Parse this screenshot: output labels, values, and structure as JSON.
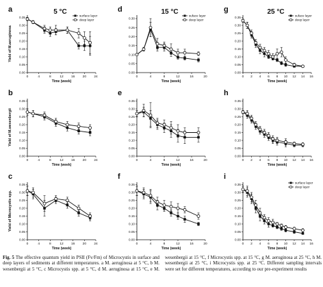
{
  "figure": {
    "caption_label": "Fig. 5",
    "caption_text": "The effective quantum yield in PSII (Fv/Fm) of Microcystis in surface and deep layers of sediments at different temperatures. a M. aeruginosa at 5 °C, b M. wesenbergii at 5 °C, c Microcystis spp. at 5 °C, d M. aeruginosa at 15 °C, e M. wesenbergii at 15 °C, f Microcystis spp. at 15 °C, g M. aeruginosa at 25 °C, h M. wesenbergii at 25 °C, i Microcystis spp. at 25 °C. Different sampling intervals were set for different temperatures, according to our pre-experiment results"
  },
  "chart_data": [
    {
      "panel": "a",
      "title": "5 °C",
      "type": "line",
      "xlabel": "Time (week)",
      "ylabel": "Yield of M.aeruginosa",
      "xlim": [
        0,
        24
      ],
      "xticks": [
        0,
        4,
        8,
        12,
        16,
        20,
        24
      ],
      "ylim": [
        0,
        0.4
      ],
      "yticks": [
        0,
        0.05,
        0.1,
        0.15,
        0.2,
        0.25,
        0.3,
        0.35,
        0.4
      ],
      "legend": [
        "surface layer",
        "deep layer"
      ],
      "series": [
        {
          "name": "surface layer",
          "x": [
            0,
            2,
            6,
            8,
            10,
            14,
            18,
            20,
            22
          ],
          "y": [
            0.34,
            0.32,
            0.27,
            0.25,
            0.26,
            0.27,
            0.17,
            0.17,
            0.17
          ],
          "err": [
            0.01,
            0.01,
            0.02,
            0.02,
            0.02,
            0.02,
            0.02,
            0.03,
            0.06
          ]
        },
        {
          "name": "deep layer",
          "x": [
            0,
            2,
            6,
            8,
            10,
            14,
            18,
            20,
            22
          ],
          "y": [
            0.34,
            0.32,
            0.28,
            0.27,
            0.27,
            0.27,
            0.25,
            0.22,
            0.19
          ],
          "err": [
            0.01,
            0.01,
            0.02,
            0.02,
            0.03,
            0.02,
            0.03,
            0.04,
            0.07
          ]
        }
      ]
    },
    {
      "panel": "d",
      "title": "15 °C",
      "type": "line",
      "xlabel": "Time (week)",
      "ylabel": "",
      "xlim": [
        0,
        20
      ],
      "xticks": [
        0,
        4,
        8,
        12,
        16,
        20
      ],
      "ylim": [
        0,
        0.35
      ],
      "yticks": [
        0,
        0.05,
        0.1,
        0.15,
        0.2,
        0.25,
        0.3,
        0.35
      ],
      "legend": [
        "suface layer",
        "deep layer"
      ],
      "series": [
        {
          "name": "suface layer",
          "x": [
            0,
            2,
            4,
            6,
            8,
            10,
            12,
            14,
            18
          ],
          "y": [
            0.1,
            0.13,
            0.24,
            0.14,
            0.14,
            0.11,
            0.085,
            0.08,
            0.07
          ],
          "err": [
            0.005,
            0.01,
            0.04,
            0.02,
            0.02,
            0.02,
            0.01,
            0.01,
            0.01
          ]
        },
        {
          "name": "deep layer",
          "x": [
            0,
            2,
            4,
            6,
            8,
            10,
            12,
            14,
            18
          ],
          "y": [
            0.1,
            0.13,
            0.25,
            0.16,
            0.15,
            0.13,
            0.11,
            0.11,
            0.105
          ],
          "err": [
            0.005,
            0.01,
            0.05,
            0.03,
            0.02,
            0.03,
            0.02,
            0.02,
            0.01
          ]
        }
      ]
    },
    {
      "panel": "g",
      "title": "25 °C",
      "type": "line",
      "xlabel": "Time (week)",
      "ylabel": "",
      "xlim": [
        0,
        16
      ],
      "xticks": [
        0,
        2,
        4,
        6,
        8,
        10,
        12,
        14,
        16
      ],
      "ylim": [
        0,
        0.4
      ],
      "yticks": [
        0,
        0.05,
        0.1,
        0.15,
        0.2,
        0.25,
        0.3,
        0.35,
        0.4
      ],
      "legend": [
        "suface layer",
        "deep layer"
      ],
      "series": [
        {
          "name": "suface layer",
          "x": [
            0,
            1,
            2,
            3,
            4,
            5,
            6,
            7,
            8,
            9,
            10,
            12,
            14
          ],
          "y": [
            0.33,
            0.3,
            0.24,
            0.18,
            0.14,
            0.12,
            0.1,
            0.09,
            0.08,
            0.06,
            0.05,
            0.04,
            0.04
          ],
          "err": [
            0.01,
            0.02,
            0.02,
            0.02,
            0.02,
            0.02,
            0.01,
            0.01,
            0.01,
            0.01,
            0.01,
            0.005,
            0.005
          ]
        },
        {
          "name": "deep layer",
          "x": [
            0,
            1,
            2,
            3,
            4,
            5,
            6,
            7,
            8,
            9,
            10,
            12,
            14
          ],
          "y": [
            0.33,
            0.3,
            0.25,
            0.19,
            0.16,
            0.14,
            0.12,
            0.1,
            0.12,
            0.13,
            0.08,
            0.05,
            0.04
          ],
          "err": [
            0.01,
            0.02,
            0.02,
            0.02,
            0.02,
            0.02,
            0.02,
            0.02,
            0.03,
            0.03,
            0.02,
            0.01,
            0.005
          ]
        }
      ]
    },
    {
      "panel": "b",
      "title": "",
      "type": "line",
      "xlabel": "Time (week)",
      "ylabel": "Yield of M.wesenbergii",
      "xlim": [
        0,
        24
      ],
      "xticks": [
        0,
        4,
        8,
        12,
        16,
        20,
        24
      ],
      "ylim": [
        0,
        0.4
      ],
      "yticks": [
        0,
        0.05,
        0.1,
        0.15,
        0.2,
        0.25,
        0.3,
        0.35,
        0.4
      ],
      "legend": [],
      "series": [
        {
          "name": "",
          "x": [
            0,
            2,
            6,
            10,
            14,
            18,
            22
          ],
          "y": [
            0.28,
            0.27,
            0.25,
            0.21,
            0.18,
            0.16,
            0.15
          ],
          "err": [
            0.02,
            0.02,
            0.02,
            0.02,
            0.02,
            0.02,
            0.02
          ]
        },
        {
          "name": "",
          "x": [
            0,
            2,
            6,
            10,
            14,
            18,
            22
          ],
          "y": [
            0.28,
            0.27,
            0.26,
            0.22,
            0.2,
            0.19,
            0.18
          ],
          "err": [
            0.02,
            0.02,
            0.02,
            0.02,
            0.02,
            0.02,
            0.02
          ]
        }
      ]
    },
    {
      "panel": "e",
      "title": "",
      "type": "line",
      "xlabel": "Time (week)",
      "ylabel": "",
      "xlim": [
        0,
        20
      ],
      "xticks": [
        0,
        4,
        8,
        12,
        16,
        20
      ],
      "ylim": [
        0,
        0.4
      ],
      "yticks": [
        0,
        0.05,
        0.1,
        0.15,
        0.2,
        0.25,
        0.3,
        0.35,
        0.4
      ],
      "legend": [],
      "series": [
        {
          "name": "",
          "x": [
            0,
            2,
            4,
            6,
            8,
            10,
            12,
            14,
            18
          ],
          "y": [
            0.27,
            0.28,
            0.24,
            0.2,
            0.18,
            0.16,
            0.13,
            0.12,
            0.12
          ],
          "err": [
            0.02,
            0.03,
            0.05,
            0.03,
            0.03,
            0.04,
            0.04,
            0.04,
            0.03
          ]
        },
        {
          "name": "",
          "x": [
            0,
            2,
            4,
            6,
            8,
            10,
            12,
            14,
            18
          ],
          "y": [
            0.27,
            0.29,
            0.26,
            0.21,
            0.2,
            0.18,
            0.16,
            0.15,
            0.15
          ],
          "err": [
            0.02,
            0.04,
            0.08,
            0.03,
            0.03,
            0.04,
            0.04,
            0.03,
            0.03
          ]
        }
      ]
    },
    {
      "panel": "h",
      "title": "",
      "type": "line",
      "xlabel": "Time (week)",
      "ylabel": "",
      "xlim": [
        0,
        16
      ],
      "xticks": [
        0,
        2,
        4,
        6,
        8,
        10,
        12,
        14,
        16
      ],
      "ylim": [
        0,
        0.4
      ],
      "yticks": [
        0,
        0.05,
        0.1,
        0.15,
        0.2,
        0.25,
        0.3,
        0.35,
        0.4
      ],
      "legend": [],
      "series": [
        {
          "name": "",
          "x": [
            0,
            1,
            2,
            3,
            4,
            5,
            6,
            7,
            8,
            10,
            12,
            14
          ],
          "y": [
            0.28,
            0.26,
            0.23,
            0.19,
            0.16,
            0.14,
            0.12,
            0.1,
            0.09,
            0.08,
            0.07,
            0.07
          ],
          "err": [
            0.01,
            0.02,
            0.02,
            0.02,
            0.02,
            0.02,
            0.02,
            0.02,
            0.02,
            0.02,
            0.01,
            0.01
          ]
        },
        {
          "name": "",
          "x": [
            0,
            1,
            2,
            3,
            4,
            5,
            6,
            7,
            8,
            10,
            12,
            14
          ],
          "y": [
            0.28,
            0.27,
            0.24,
            0.2,
            0.17,
            0.15,
            0.13,
            0.11,
            0.1,
            0.09,
            0.08,
            0.075
          ],
          "err": [
            0.01,
            0.02,
            0.02,
            0.02,
            0.02,
            0.02,
            0.02,
            0.02,
            0.02,
            0.02,
            0.01,
            0.01
          ]
        }
      ]
    },
    {
      "panel": "c",
      "title": "",
      "type": "line",
      "xlabel": "Time (week)",
      "ylabel": "Yield of Microcystis spp.",
      "xlim": [
        0,
        24
      ],
      "xticks": [
        0,
        4,
        8,
        12,
        16,
        20,
        24
      ],
      "ylim": [
        0,
        0.4
      ],
      "yticks": [
        0,
        0.05,
        0.1,
        0.15,
        0.2,
        0.25,
        0.3,
        0.35,
        0.4
      ],
      "legend": [],
      "series": [
        {
          "name": "",
          "x": [
            0,
            2,
            6,
            10,
            14,
            18,
            22
          ],
          "y": [
            0.31,
            0.29,
            0.2,
            0.25,
            0.22,
            0.17,
            0.14
          ],
          "err": [
            0.03,
            0.03,
            0.05,
            0.02,
            0.02,
            0.02,
            0.02
          ]
        },
        {
          "name": "",
          "x": [
            0,
            2,
            6,
            10,
            14,
            18,
            22
          ],
          "y": [
            0.31,
            0.3,
            0.23,
            0.26,
            0.25,
            0.2,
            0.15
          ],
          "err": [
            0.03,
            0.03,
            0.05,
            0.02,
            0.02,
            0.02,
            0.02
          ]
        }
      ]
    },
    {
      "panel": "f",
      "title": "",
      "type": "line",
      "xlabel": "Time (week)",
      "ylabel": "",
      "xlim": [
        0,
        20
      ],
      "xticks": [
        0,
        4,
        8,
        12,
        16,
        20
      ],
      "ylim": [
        0,
        0.4
      ],
      "yticks": [
        0,
        0.05,
        0.1,
        0.15,
        0.2,
        0.25,
        0.3,
        0.35,
        0.4
      ],
      "legend": [],
      "series": [
        {
          "name": "",
          "x": [
            0,
            2,
            4,
            6,
            8,
            10,
            12,
            14,
            18
          ],
          "y": [
            0.31,
            0.29,
            0.27,
            0.22,
            0.2,
            0.17,
            0.15,
            0.13,
            0.1
          ],
          "err": [
            0.03,
            0.03,
            0.04,
            0.03,
            0.02,
            0.02,
            0.02,
            0.02,
            0.01
          ]
        },
        {
          "name": "",
          "x": [
            0,
            2,
            4,
            6,
            8,
            10,
            12,
            14,
            18
          ],
          "y": [
            0.31,
            0.3,
            0.28,
            0.24,
            0.22,
            0.21,
            0.2,
            0.19,
            0.15
          ],
          "err": [
            0.03,
            0.03,
            0.04,
            0.03,
            0.03,
            0.03,
            0.03,
            0.02,
            0.02
          ]
        }
      ]
    },
    {
      "panel": "i",
      "title": "",
      "type": "line",
      "xlabel": "Time (week)",
      "ylabel": "",
      "xlim": [
        0,
        16
      ],
      "xticks": [
        0,
        2,
        4,
        6,
        8,
        10,
        12,
        14,
        16
      ],
      "ylim": [
        0,
        0.4
      ],
      "yticks": [
        0,
        0.05,
        0.1,
        0.15,
        0.2,
        0.25,
        0.3,
        0.35,
        0.4
      ],
      "legend": [
        "surface layer",
        "deep layer"
      ],
      "series": [
        {
          "name": "surface layer",
          "x": [
            0,
            1,
            2,
            3,
            4,
            5,
            6,
            7,
            8,
            9,
            10,
            12,
            14
          ],
          "y": [
            0.32,
            0.3,
            0.26,
            0.2,
            0.15,
            0.12,
            0.1,
            0.09,
            0.08,
            0.07,
            0.06,
            0.05,
            0.04
          ],
          "err": [
            0.02,
            0.03,
            0.03,
            0.03,
            0.03,
            0.02,
            0.02,
            0.01,
            0.01,
            0.01,
            0.01,
            0.01,
            0.005
          ]
        },
        {
          "name": "deep layer",
          "x": [
            0,
            1,
            2,
            3,
            4,
            5,
            6,
            7,
            8,
            9,
            10,
            12,
            14
          ],
          "y": [
            0.32,
            0.31,
            0.27,
            0.22,
            0.17,
            0.14,
            0.12,
            0.11,
            0.1,
            0.09,
            0.08,
            0.07,
            0.06
          ],
          "err": [
            0.02,
            0.03,
            0.03,
            0.03,
            0.03,
            0.02,
            0.02,
            0.02,
            0.01,
            0.01,
            0.01,
            0.01,
            0.01
          ]
        }
      ]
    }
  ]
}
